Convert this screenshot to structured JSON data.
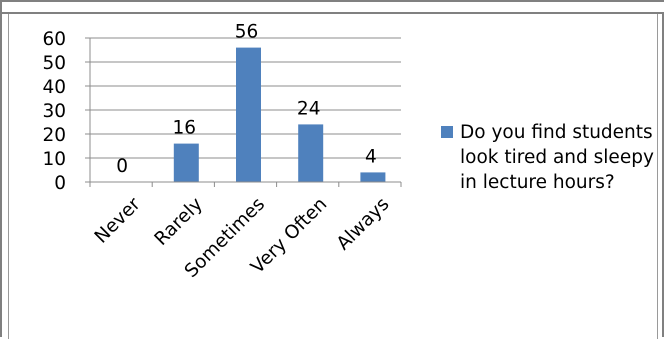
{
  "chart_data": {
    "type": "bar",
    "title": "",
    "xlabel": "",
    "ylabel": "",
    "categories": [
      "Never",
      "Rarely",
      "Sometimes",
      "Very Often",
      "Always"
    ],
    "series": [
      {
        "name": "Do you find students look tired and sleepy in lecture hours?",
        "values": [
          0,
          16,
          56,
          24,
          4
        ],
        "color": "#4F81BD"
      }
    ],
    "data_labels": [
      "0",
      "16",
      "56",
      "24",
      "4"
    ],
    "ylim": [
      0,
      60
    ],
    "y_ticks": [
      0,
      10,
      20,
      30,
      40,
      50,
      60
    ],
    "grid": true,
    "legend_position": "right"
  }
}
